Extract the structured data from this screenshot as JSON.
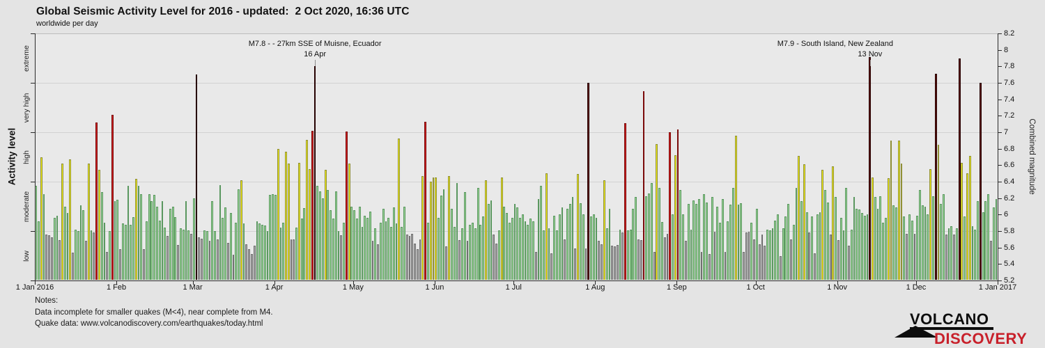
{
  "title": "Global Seismic Activity Level for 2016 - updated:  2 Oct 2020, 16:36 UTC",
  "subtitle": "worldwide per day",
  "y_left": {
    "label": "Activity level",
    "zones": [
      "extreme",
      "very high",
      "high",
      "moderate",
      "low"
    ]
  },
  "y_right": {
    "label": "Combined magnitude",
    "min": 5.2,
    "max": 8.2,
    "tick_step": 0.2
  },
  "x_axis": {
    "labels": [
      "1 Jan 2016",
      "1 Feb",
      "1 Mar",
      "1 Apr",
      "1 May",
      "1 Jun",
      "1 Jul",
      "1 Aug",
      "1 Sep",
      "1 Oct",
      "1 Nov",
      "1 Dec",
      "1 Jan 2017"
    ],
    "day_offsets": [
      0,
      31,
      60,
      91,
      121,
      152,
      182,
      213,
      244,
      274,
      305,
      335,
      366
    ]
  },
  "annotations": [
    {
      "label": "M7.8 - - 27km SSE of Muisne, Ecuador",
      "date": "16 Apr",
      "day": 107
    },
    {
      "label": "M7.9 - South Island, New Zealand",
      "date": "13 Nov",
      "day": 318
    }
  ],
  "notes": {
    "heading": "Notes:",
    "line1": "Data incomplete for smaller quakes (M<4), near complete from M4.",
    "line2": "Quake data: www.volcanodiscovery.com/earthquakes/today.html"
  },
  "logo": {
    "line1": "VOLCANO",
    "line2": "DISCOVERY"
  },
  "levels": [
    {
      "name": "low",
      "max": 5.8,
      "fill": "#ababab",
      "border": "#6f6f6f"
    },
    {
      "name": "moderate",
      "max": 6.4,
      "fill": "#9dd699",
      "border": "#5a975f"
    },
    {
      "name": "high",
      "max": 7.0,
      "fill": "#f6f218",
      "border": "#8f8f35"
    },
    {
      "name": "very high",
      "max": 7.6,
      "fill": "#d42021",
      "border": "#7a0a0a"
    },
    {
      "name": "extreme",
      "max": 99.0,
      "fill": "#6b1010",
      "border": "#250101"
    }
  ],
  "chart_data": {
    "type": "bar",
    "title": "Global Seismic Activity Level for 2016",
    "xlabel": "day of year 2016 (1 Jan 2016 - 31 Dec 2016, one bar per day)",
    "ylabel": "Combined magnitude",
    "ylim": [
      5.2,
      8.2
    ],
    "grid_levels": [
      7.6,
      7.0,
      6.4,
      5.8
    ],
    "level_thresholds": {
      "low": "<5.8",
      "moderate": "5.8-6.4",
      "high": "6.4-7.0",
      "very high": "7.0-7.6",
      "extreme": ">=7.6"
    },
    "values": [
      6.35,
      5.92,
      6.7,
      6.25,
      5.76,
      5.75,
      5.72,
      5.96,
      5.99,
      5.69,
      6.62,
      6.1,
      6.02,
      6.67,
      5.54,
      5.82,
      5.8,
      6.11,
      6.05,
      5.68,
      6.62,
      5.81,
      5.78,
      7.12,
      6.54,
      6.27,
      5.9,
      5.55,
      5.8,
      7.21,
      6.16,
      6.18,
      5.58,
      5.89,
      5.88,
      6.35,
      5.88,
      5.97,
      6.43,
      6.35,
      6.25,
      5.58,
      5.92,
      6.25,
      6.16,
      6.24,
      6.1,
      5.93,
      6.16,
      5.84,
      5.74,
      6.07,
      6.1,
      5.97,
      5.63,
      5.83,
      5.82,
      6.16,
      5.81,
      5.77,
      6.2,
      7.7,
      5.72,
      5.71,
      5.81,
      5.8,
      5.68,
      6.16,
      5.8,
      5.7,
      6.36,
      5.96,
      6.09,
      5.66,
      6.02,
      5.51,
      5.9,
      6.31,
      6.42,
      5.89,
      5.64,
      5.58,
      5.52,
      5.62,
      5.92,
      5.89,
      5.88,
      5.87,
      5.8,
      6.24,
      6.25,
      6.24,
      6.8,
      5.84,
      5.9,
      6.76,
      6.62,
      5.7,
      5.7,
      5.84,
      6.63,
      5.95,
      6.08,
      6.91,
      6.55,
      7.02,
      7.8,
      6.35,
      6.28,
      6.2,
      6.54,
      6.3,
      6.05,
      5.95,
      6.28,
      5.8,
      5.75,
      5.9,
      7.01,
      6.62,
      6.1,
      6.05,
      5.95,
      6.1,
      5.85,
      5.99,
      5.96,
      6.04,
      5.68,
      5.83,
      5.64,
      5.9,
      6.07,
      5.92,
      5.96,
      5.85,
      6.09,
      5.89,
      6.92,
      5.85,
      6.1,
      5.76,
      5.74,
      5.77,
      5.65,
      5.58,
      5.7,
      6.47,
      7.13,
      5.9,
      6.4,
      6.45,
      6.45,
      5.96,
      6.23,
      6.31,
      5.61,
      6.47,
      6.07,
      5.85,
      6.38,
      5.69,
      5.83,
      6.27,
      5.68,
      5.88,
      5.9,
      5.83,
      6.32,
      5.88,
      5.98,
      6.42,
      6.13,
      6.17,
      5.76,
      5.65,
      5.81,
      6.45,
      6.1,
      6.02,
      5.9,
      5.96,
      6.13,
      6.09,
      5.96,
      6.0,
      5.92,
      5.88,
      5.95,
      5.92,
      5.55,
      6.19,
      6.35,
      5.81,
      6.5,
      5.83,
      5.53,
      5.99,
      5.81,
      6.0,
      6.09,
      5.7,
      6.07,
      6.13,
      6.21,
      5.59,
      6.49,
      6.14,
      6.0,
      5.59,
      7.6,
      5.98,
      6.0,
      5.96,
      5.68,
      5.64,
      6.42,
      5.83,
      6.07,
      5.62,
      5.61,
      5.63,
      5.82,
      5.78,
      7.11,
      5.81,
      5.82,
      6.07,
      6.21,
      5.7,
      5.69,
      7.5,
      6.22,
      6.26,
      6.38,
      5.55,
      6.86,
      6.32,
      5.91,
      5.72,
      5.77,
      7.0,
      6.0,
      6.72,
      7.03,
      6.3,
      6.0,
      5.68,
      6.13,
      5.82,
      6.17,
      6.13,
      6.19,
      5.55,
      6.25,
      6.15,
      5.52,
      6.21,
      5.79,
      6.1,
      5.9,
      6.19,
      5.55,
      5.92,
      6.12,
      6.32,
      6.96,
      6.12,
      6.14,
      5.55,
      5.78,
      5.79,
      5.9,
      5.7,
      6.07,
      5.64,
      5.76,
      5.62,
      5.82,
      5.81,
      5.83,
      5.93,
      6.0,
      5.5,
      5.83,
      5.98,
      6.13,
      5.7,
      5.88,
      6.32,
      6.71,
      6.16,
      6.61,
      6.03,
      5.78,
      5.98,
      5.53,
      6.0,
      6.03,
      6.54,
      6.3,
      6.15,
      5.76,
      6.59,
      6.21,
      5.69,
      5.96,
      5.81,
      6.32,
      5.62,
      5.82,
      6.21,
      6.07,
      6.06,
      6.02,
      5.99,
      6.0,
      7.91,
      6.45,
      6.21,
      6.07,
      6.22,
      5.9,
      5.96,
      6.44,
      6.9,
      6.11,
      6.09,
      6.9,
      6.62,
      5.98,
      5.77,
      6.0,
      5.93,
      5.77,
      5.99,
      6.3,
      6.11,
      6.1,
      6.0,
      6.55,
      6.22,
      7.71,
      6.85,
      6.13,
      6.25,
      5.76,
      5.83,
      5.86,
      5.76,
      5.83,
      7.9,
      6.63,
      5.98,
      6.5,
      6.71,
      5.86,
      5.82,
      6.16,
      7.6,
      6.03,
      6.16,
      6.25,
      5.68,
      6.09,
      6.19
    ]
  }
}
